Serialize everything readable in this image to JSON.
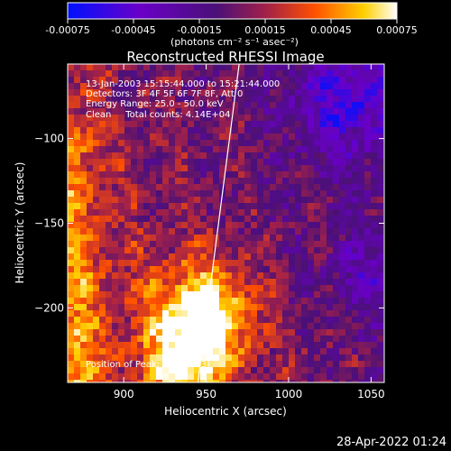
{
  "colorbar": {
    "ticks": [
      "-0.00075",
      "-0.00045",
      "-0.00015",
      "0.00015",
      "0.00045",
      "0.00075"
    ],
    "tick_values": [
      -0.00075,
      -0.00045,
      -0.00015,
      0.00015,
      0.00045,
      0.00075
    ],
    "range": [
      -0.00075,
      0.00075
    ],
    "units": "(photons cm⁻² s⁻¹ asec⁻²)",
    "colors": [
      "#0010ff",
      "#6a00c8",
      "#4a1078",
      "#a0204a",
      "#ff5000",
      "#ffd000",
      "#ffffff"
    ]
  },
  "image": {
    "title": "Reconstructed RHESSI Image",
    "info_lines": [
      "13-Jan-2003 15:15:44.000 to 15:21:44.000",
      "Detectors: 3F 4F 5F 6F 7F 8F, Att 0",
      "Energy Range: 25.0 - 50.0 keV",
      "Clean     Total counts: 4.14E+04"
    ],
    "peak_label": "Position of Peak: [946,-203]",
    "peak": [
      946,
      -203
    ],
    "x_label": "Heliocentric X (arcsec)",
    "y_label": "Heliocentric Y (arcsec)",
    "x_range": [
      866,
      1058
    ],
    "y_range": [
      -244,
      -56
    ],
    "x_ticks": [
      {
        "value": 900,
        "label": "900"
      },
      {
        "value": 950,
        "label": "950"
      },
      {
        "value": 1000,
        "label": "1000"
      },
      {
        "value": 1050,
        "label": "1050"
      }
    ],
    "y_ticks": [
      {
        "value": -100,
        "label": "−100"
      },
      {
        "value": -150,
        "label": "−150"
      },
      {
        "value": -200,
        "label": "−200"
      }
    ],
    "limb": [
      [
        970,
        -56
      ],
      [
        945,
        -244
      ]
    ]
  },
  "footer": {
    "timestamp": "28-Apr-2022 01:24"
  }
}
